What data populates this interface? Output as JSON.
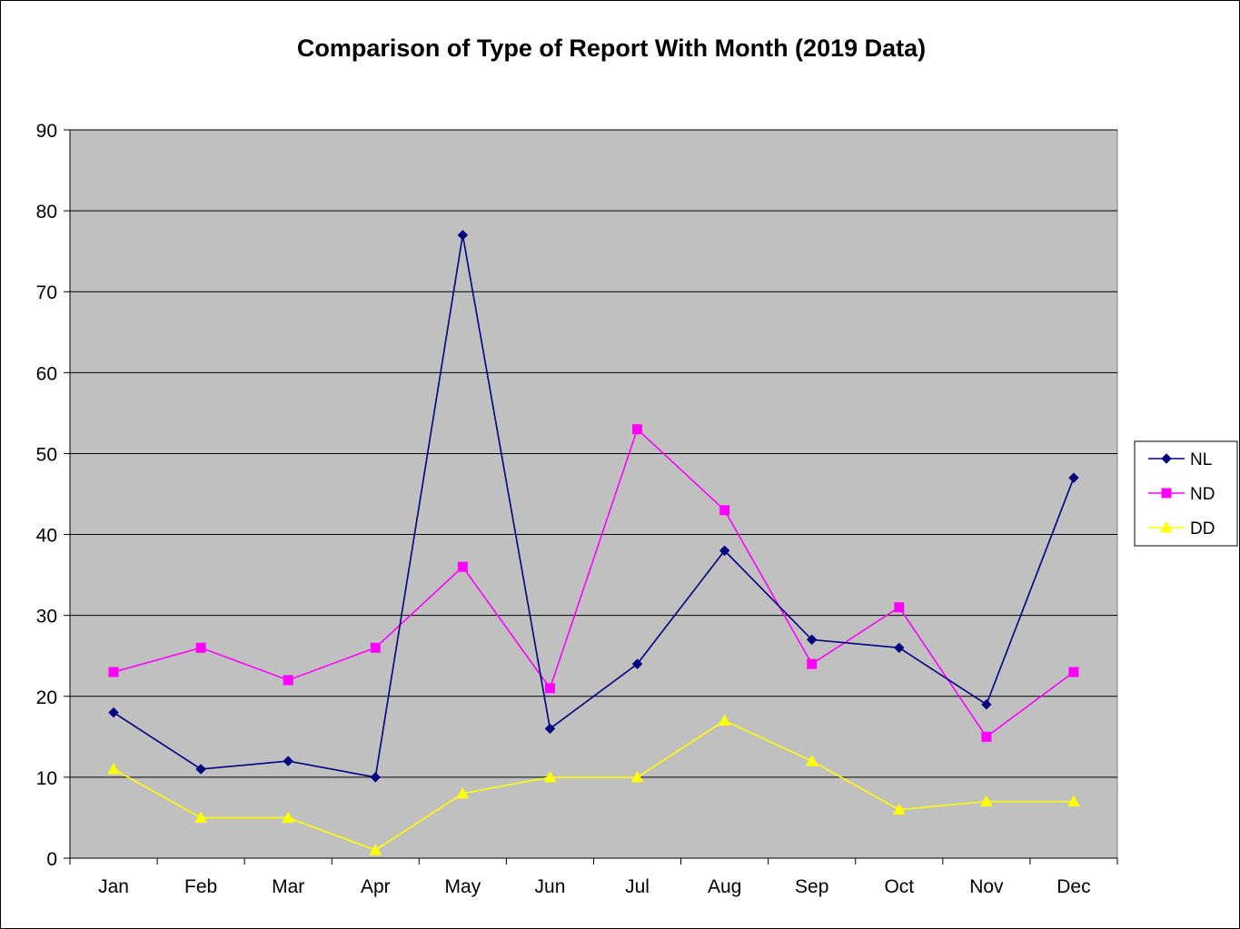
{
  "chart_data": {
    "type": "line",
    "title": "Comparison of Type of Report With Month (2019 Data)",
    "xlabel": "",
    "ylabel": "",
    "categories": [
      "Jan",
      "Feb",
      "Mar",
      "Apr",
      "May",
      "Jun",
      "Jul",
      "Aug",
      "Sep",
      "Oct",
      "Nov",
      "Dec"
    ],
    "ylim": [
      0,
      90
    ],
    "yticks": [
      "0",
      "10",
      "20",
      "30",
      "40",
      "50",
      "60",
      "70",
      "80",
      "90"
    ],
    "grid": true,
    "legend_position": "right",
    "plot_background": "#c0c0c0",
    "series": [
      {
        "name": "NL",
        "color": "#000080",
        "marker": "diamond",
        "values": [
          18,
          11,
          12,
          10,
          77,
          16,
          24,
          38,
          27,
          26,
          19,
          47
        ]
      },
      {
        "name": "ND",
        "color": "#ff00ff",
        "marker": "square",
        "values": [
          23,
          26,
          22,
          26,
          36,
          21,
          53,
          43,
          24,
          31,
          15,
          23
        ]
      },
      {
        "name": "DD",
        "color": "#ffff00",
        "marker": "triangle",
        "values": [
          11,
          5,
          5,
          1,
          8,
          10,
          10,
          17,
          12,
          6,
          7,
          7
        ]
      }
    ]
  }
}
